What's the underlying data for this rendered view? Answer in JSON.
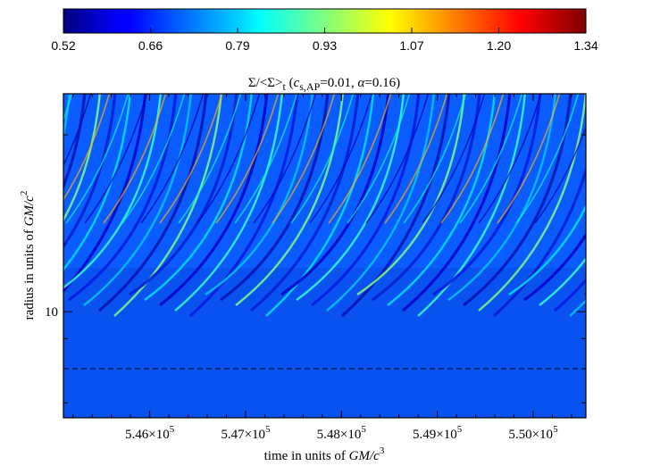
{
  "chart_data": {
    "type": "heatmap",
    "colormap": "jet",
    "colorbar": {
      "min": 0.52,
      "max": 1.34,
      "ticks": [
        "0.52",
        "0.66",
        "0.79",
        "0.93",
        "1.07",
        "1.20",
        "1.34"
      ]
    },
    "title": {
      "prefix": "Σ/<Σ>",
      "prefix_sub": "t",
      "params_open": "(",
      "cs_symbol": "c",
      "cs_sub": "s,AP",
      "cs_value": "=0.01,",
      "alpha_symbol": "α",
      "alpha_value": "=0.16)"
    },
    "xlabel": {
      "text": "time in units of ",
      "unit": "GM/c",
      "unit_sup": "3"
    },
    "ylabel": {
      "text": "radius in units of ",
      "unit": "GM/c",
      "unit_sup": "2"
    },
    "x_ticks": [
      {
        "value": 546000,
        "mantissa": "5.46×10",
        "exp": "5"
      },
      {
        "value": 547000,
        "mantissa": "5.47×10",
        "exp": "5"
      },
      {
        "value": 548000,
        "mantissa": "5.48×10",
        "exp": "5"
      },
      {
        "value": 549000,
        "mantissa": "5.49×10",
        "exp": "5"
      },
      {
        "value": 550000,
        "mantissa": "5.50×10",
        "exp": "5"
      }
    ],
    "y_ticks": [
      {
        "value": 10,
        "label": "10"
      }
    ],
    "xlim": [
      545100,
      550550
    ],
    "ylim": [
      6.6,
      23.5
    ],
    "y_scale": "log",
    "reference_line": {
      "y": 8.0,
      "style": "dashed",
      "color": "#000000"
    },
    "grid": false
  }
}
